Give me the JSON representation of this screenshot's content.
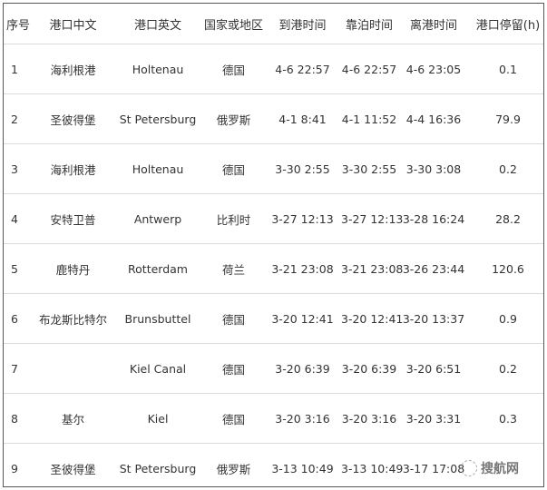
{
  "headers": [
    "序号",
    "港口中文",
    "港口英文",
    "国家或地区",
    "到港时间",
    "靠泊时间",
    "离港时间",
    "港口停留(h)"
  ],
  "rows": [
    [
      "1",
      "海利根港",
      "Holtenau",
      "德国",
      "4-6 22:57",
      "4-6 22:57",
      "4-6 23:05",
      "0.1"
    ],
    [
      "2",
      "圣彼得堡",
      "St Petersburg",
      "俄罗斯",
      "4-1 8:41",
      "4-1 11:52",
      "4-4 16:36",
      "79.9"
    ],
    [
      "3",
      "海利根港",
      "Holtenau",
      "德国",
      "3-30 2:55",
      "3-30 2:55",
      "3-30 3:08",
      "0.2"
    ],
    [
      "4",
      "安特卫普",
      "Antwerp",
      "比利时",
      "3-27 12:13",
      "3-27 12:13",
      "3-28 16:24",
      "28.2"
    ],
    [
      "5",
      "鹿特丹",
      "Rotterdam",
      "荷兰",
      "3-21 23:08",
      "3-21 23:08",
      "3-26 23:44",
      "120.6"
    ],
    [
      "6",
      "布龙斯比特尔",
      "Brunsbuttel",
      "德国",
      "3-20 12:41",
      "3-20 12:41",
      "3-20 13:37",
      "0.9"
    ],
    [
      "7",
      "",
      "Kiel Canal",
      "德国",
      "3-20 6:39",
      "3-20 6:39",
      "3-20 6:51",
      "0.2"
    ],
    [
      "8",
      "基尔",
      "Kiel",
      "德国",
      "3-20 3:16",
      "3-20 3:16",
      "3-20 3:31",
      "0.3"
    ],
    [
      "9",
      "圣彼得堡",
      "St Petersburg",
      "俄罗斯",
      "3-13 10:49",
      "3-13 10:49",
      "3-17 17:08",
      ""
    ]
  ],
  "watermark": {
    "text": "搜航网",
    "icon": "wechat-icon"
  }
}
